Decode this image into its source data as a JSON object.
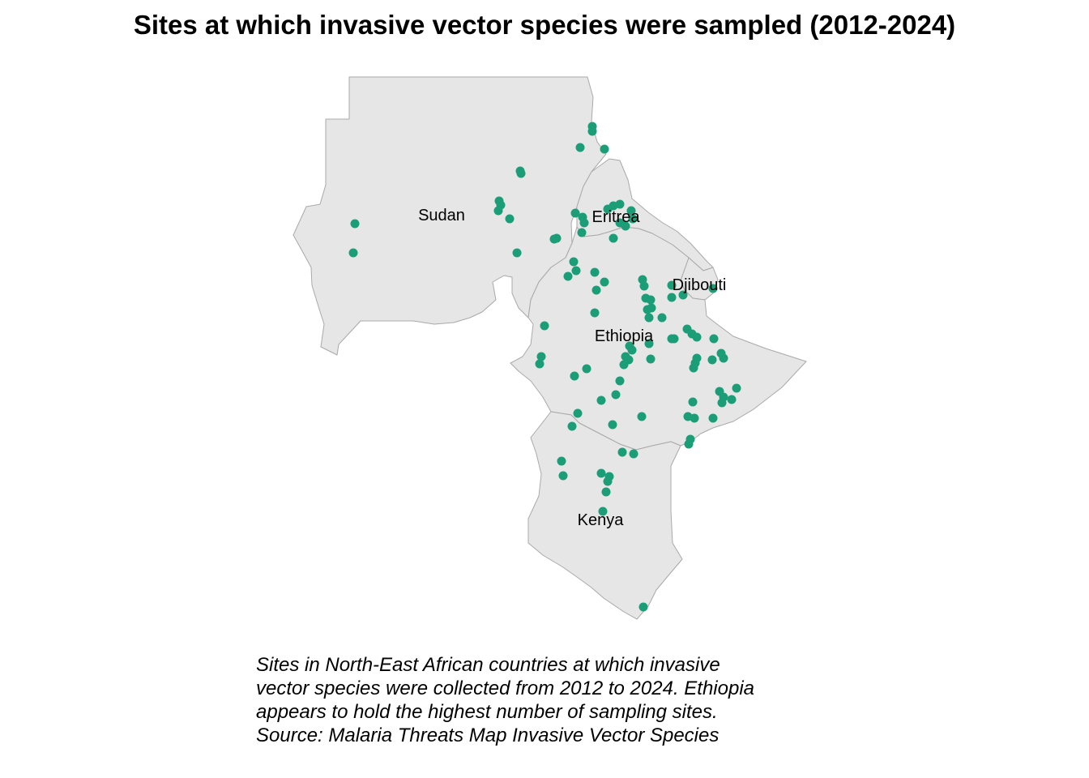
{
  "title": "Sites at which invasive vector species were sampled (2012-2024)",
  "caption": "Sites in North-East African countries at which invasive vector species were collected from 2012 to 2024. Ethiopia appears to hold the highest number of sampling sites. Source: Malaria Threats Map Invasive Vector Species",
  "map": {
    "countries": [
      {
        "name": "Sudan",
        "label": "Sudan"
      },
      {
        "name": "Eritrea",
        "label": "Eritrea"
      },
      {
        "name": "Djibouti",
        "label": "Djibouti"
      },
      {
        "name": "Ethiopia",
        "label": "Ethiopia"
      },
      {
        "name": "Kenya",
        "label": "Kenya"
      }
    ],
    "fill_color": "#e6e6e6",
    "border_color": "#a9a9a9",
    "point_color": "#1b9e77"
  }
}
